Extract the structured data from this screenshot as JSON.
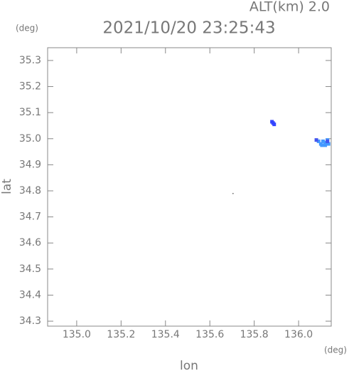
{
  "chart_data": {
    "type": "scatter",
    "title": "2021/10/20 23:25:43",
    "subtitle": "ALT(km) 2.0",
    "x_label": "lon",
    "y_label": "lat",
    "x_unit": "(deg)",
    "y_unit": "(deg)",
    "xlim": [
      134.869,
      136.147
    ],
    "ylim": [
      34.281,
      35.349
    ],
    "xticks": [
      {
        "value": 135,
        "label": "135.0"
      },
      135.2,
      135.4,
      135.6,
      135.8,
      {
        "value": 136,
        "label": "136.0"
      }
    ],
    "yticks": [
      35.3,
      35.2,
      35.1,
      {
        "value": 35,
        "label": "35.0"
      },
      34.9,
      34.8,
      34.7,
      34.6,
      34.5,
      34.4,
      34.3
    ],
    "series": [
      {
        "color": "#3344ff",
        "x": [
          135.88,
          135.885,
          135.89
        ],
        "y": [
          35.065,
          35.06,
          35.055
        ]
      },
      {
        "color": "#4499ff",
        "x": [
          136.09,
          136.1,
          136.11,
          136.12,
          136.13,
          136.12,
          136.135,
          136.105
        ],
        "y": [
          34.99,
          34.98,
          34.99,
          34.985,
          34.995,
          34.975,
          34.98,
          34.975
        ]
      },
      {
        "color": "#4455ee",
        "x": [
          136.08,
          136.13
        ],
        "y": [
          34.995,
          34.99
        ]
      },
      {
        "color": "#666666",
        "x": [
          135.71
        ],
        "y": [
          34.785
        ]
      }
    ]
  }
}
